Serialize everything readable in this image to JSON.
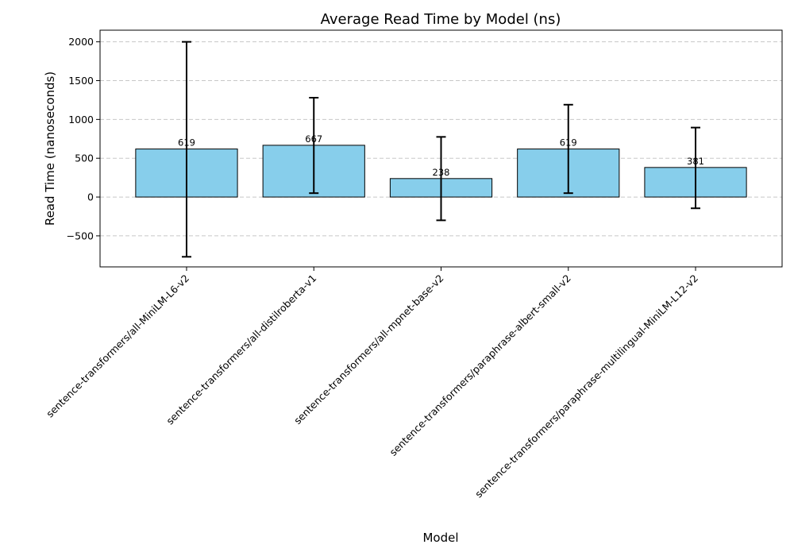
{
  "chart_data": {
    "type": "bar",
    "title": "Average Read Time by Model (ns)",
    "xlabel": "Model",
    "ylabel": "Read Time (nanoseconds)",
    "categories": [
      "sentence-transformers/all-MiniLM-L6-v2",
      "sentence-transformers/all-distilroberta-v1",
      "sentence-transformers/all-mpnet-base-v2",
      "sentence-transformers/paraphrase-albert-small-v2",
      "sentence-transformers/paraphrase-multilingual-MiniLM-L12-v2"
    ],
    "values": [
      619,
      667,
      238,
      619,
      381
    ],
    "data_labels": [
      "619",
      "667",
      "238",
      "619",
      "381"
    ],
    "error_bars": [
      {
        "low": -770,
        "high": 2000
      },
      {
        "low": 50,
        "high": 1280
      },
      {
        "low": -300,
        "high": 775
      },
      {
        "low": 50,
        "high": 1190
      },
      {
        "low": -145,
        "high": 895
      }
    ],
    "ylim": [
      -900,
      2150
    ],
    "yticks": [
      -500,
      0,
      500,
      1000,
      1500,
      2000
    ],
    "ytick_labels": [
      "−500",
      "0",
      "500",
      "1000",
      "1500",
      "2000"
    ],
    "grid": "y",
    "bar_color": "#87CEEB",
    "edge_color": "#000000"
  }
}
